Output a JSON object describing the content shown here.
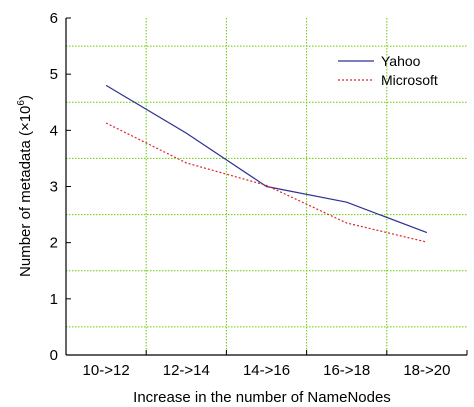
{
  "chart_data": {
    "type": "line",
    "categories": [
      "10->12",
      "12->14",
      "14->16",
      "16->18",
      "18->20"
    ],
    "xlabel": "Increase in the number of NameNodes",
    "ylabel": "Number of metadata (×10",
    "ylabel_exponent": "6",
    "ylabel_suffix": ")",
    "ylim": [
      0,
      6
    ],
    "yticks": [
      0,
      1,
      2,
      3,
      4,
      5,
      6
    ],
    "grid": true,
    "grid_color": "#66cc00",
    "legend_position": "top-right",
    "series": [
      {
        "name": "Yahoo",
        "values": [
          4.8,
          3.95,
          3.0,
          2.72,
          2.18
        ],
        "color": "#2e3192",
        "dash": "solid"
      },
      {
        "name": "Microsoft",
        "values": [
          4.13,
          3.42,
          3.02,
          2.35,
          2.01
        ],
        "color": "#d9262c",
        "dash": "dotted"
      }
    ]
  }
}
